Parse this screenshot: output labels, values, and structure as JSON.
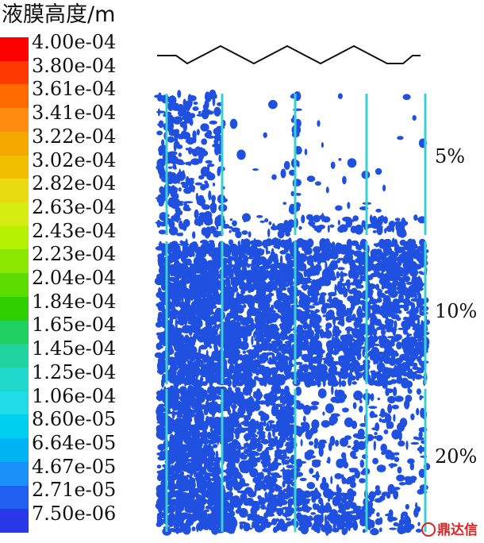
{
  "title": "液膜高度/m",
  "legend": {
    "ticks": [
      "4.00e-04",
      "3.80e-04",
      "3.61e-04",
      "3.41e-04",
      "3.22e-04",
      "3.02e-04",
      "2.82e-04",
      "2.63e-04",
      "2.43e-04",
      "2.23e-04",
      "2.04e-04",
      "1.84e-04",
      "1.65e-04",
      "1.45e-04",
      "1.25e-04",
      "1.06e-04",
      "8.60e-05",
      "6.64e-05",
      "4.67e-05",
      "2.71e-05",
      "7.50e-06"
    ],
    "colors": [
      "#ff0000",
      "#ff3a00",
      "#ff6a00",
      "#ff8c10",
      "#f4a800",
      "#f0c000",
      "#e8dc10",
      "#d4ec10",
      "#b4f000",
      "#8ce800",
      "#5cdc00",
      "#30d000",
      "#20d060",
      "#20d4a0",
      "#20d8cc",
      "#20dce8",
      "#00d0f0",
      "#00b4f4",
      "#1890f8",
      "#2060f0",
      "#2838e8"
    ]
  },
  "cases": [
    "5%",
    "10%",
    "20%"
  ],
  "watermark": "鼎达信",
  "colors": {
    "film": "#2050e0",
    "wall": "#38d0d0"
  }
}
